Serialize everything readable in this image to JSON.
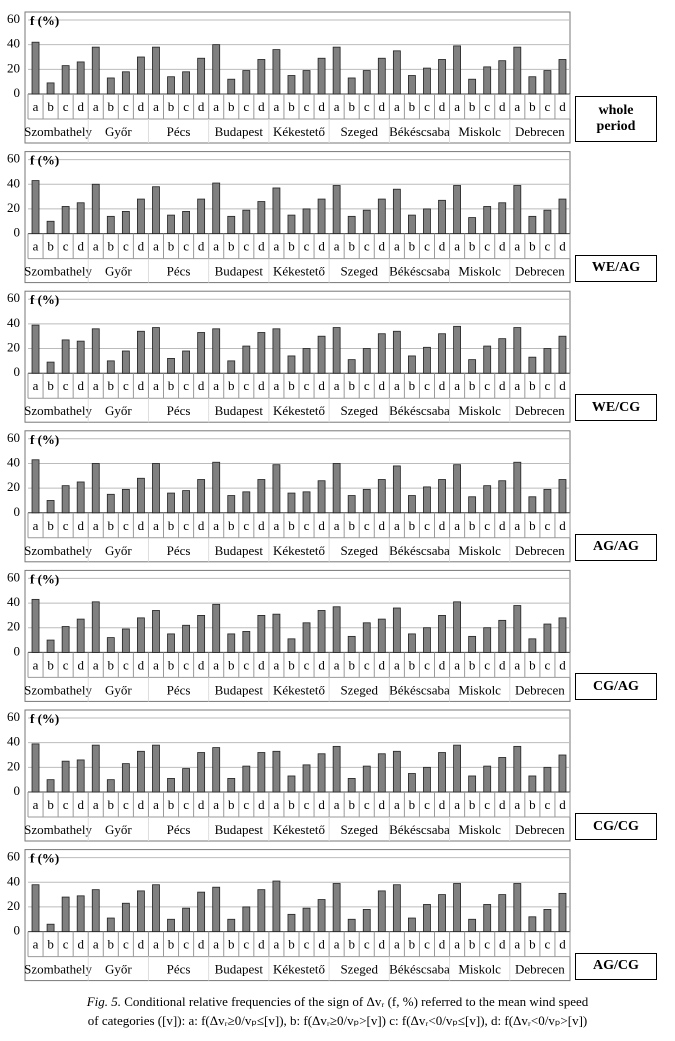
{
  "chart_data": [
    {
      "type": "bar",
      "panel_label": "whole period",
      "y_label": "f (%)",
      "color": "#808080",
      "groups": [
        "Szombathely",
        "Győr",
        "Pécs",
        "Budapest",
        "Kékestető",
        "Szeged",
        "Békéscsaba",
        "Miskolc",
        "Debrecen"
      ],
      "categories": [
        "a",
        "b",
        "c",
        "d",
        "a",
        "b",
        "c",
        "d",
        "a",
        "b",
        "c",
        "d",
        "a",
        "b",
        "c",
        "d",
        "a",
        "b",
        "c",
        "d",
        "a",
        "b",
        "c",
        "d",
        "a",
        "b",
        "c",
        "d",
        "a",
        "b",
        "c",
        "d",
        "a",
        "b",
        "c",
        "d"
      ],
      "values": [
        42,
        9,
        23,
        26,
        38,
        13,
        18,
        30,
        38,
        14,
        18,
        29,
        40,
        12,
        19,
        28,
        36,
        15,
        19,
        29,
        38,
        13,
        19,
        29,
        35,
        15,
        21,
        28,
        39,
        12,
        22,
        27,
        38,
        14,
        19,
        28
      ],
      "ylim": [
        0,
        60
      ],
      "yticks": [
        0,
        20,
        40,
        60
      ],
      "grid": true
    },
    {
      "type": "bar",
      "panel_label": "WE/AG",
      "y_label": "f (%)",
      "color": "#808080",
      "groups": [
        "Szombathely",
        "Győr",
        "Pécs",
        "Budapest",
        "Kékestető",
        "Szeged",
        "Békéscsaba",
        "Miskolc",
        "Debrecen"
      ],
      "categories": [
        "a",
        "b",
        "c",
        "d",
        "a",
        "b",
        "c",
        "d",
        "a",
        "b",
        "c",
        "d",
        "a",
        "b",
        "c",
        "d",
        "a",
        "b",
        "c",
        "d",
        "a",
        "b",
        "c",
        "d",
        "a",
        "b",
        "c",
        "d",
        "a",
        "b",
        "c",
        "d",
        "a",
        "b",
        "c",
        "d"
      ],
      "values": [
        43,
        10,
        22,
        25,
        40,
        14,
        18,
        28,
        38,
        15,
        18,
        28,
        41,
        14,
        19,
        26,
        37,
        15,
        20,
        28,
        39,
        14,
        19,
        28,
        36,
        15,
        20,
        27,
        39,
        13,
        22,
        25,
        39,
        14,
        19,
        28
      ],
      "ylim": [
        0,
        60
      ],
      "yticks": [
        0,
        20,
        40,
        60
      ],
      "grid": true
    },
    {
      "type": "bar",
      "panel_label": "WE/CG",
      "y_label": "f (%)",
      "color": "#808080",
      "groups": [
        "Szombathely",
        "Győr",
        "Pécs",
        "Budapest",
        "Kékestető",
        "Szeged",
        "Békéscsaba",
        "Miskolc",
        "Debrecen"
      ],
      "categories": [
        "a",
        "b",
        "c",
        "d",
        "a",
        "b",
        "c",
        "d",
        "a",
        "b",
        "c",
        "d",
        "a",
        "b",
        "c",
        "d",
        "a",
        "b",
        "c",
        "d",
        "a",
        "b",
        "c",
        "d",
        "a",
        "b",
        "c",
        "d",
        "a",
        "b",
        "c",
        "d",
        "a",
        "b",
        "c",
        "d"
      ],
      "values": [
        39,
        9,
        27,
        26,
        36,
        10,
        18,
        34,
        37,
        12,
        18,
        33,
        36,
        10,
        22,
        33,
        36,
        14,
        20,
        30,
        37,
        11,
        20,
        32,
        34,
        14,
        21,
        32,
        38,
        11,
        22,
        28,
        37,
        13,
        20,
        30
      ],
      "ylim": [
        0,
        60
      ],
      "yticks": [
        0,
        20,
        40,
        60
      ],
      "grid": true
    },
    {
      "type": "bar",
      "panel_label": "AG/AG",
      "y_label": "f (%)",
      "color": "#808080",
      "groups": [
        "Szombathely",
        "Győr",
        "Pécs",
        "Budapest",
        "Kékestető",
        "Szeged",
        "Békéscsaba",
        "Miskolc",
        "Debrecen"
      ],
      "categories": [
        "a",
        "b",
        "c",
        "d",
        "a",
        "b",
        "c",
        "d",
        "a",
        "b",
        "c",
        "d",
        "a",
        "b",
        "c",
        "d",
        "a",
        "b",
        "c",
        "d",
        "a",
        "b",
        "c",
        "d",
        "a",
        "b",
        "c",
        "d",
        "a",
        "b",
        "c",
        "d",
        "a",
        "b",
        "c",
        "d"
      ],
      "values": [
        43,
        10,
        22,
        25,
        40,
        15,
        19,
        28,
        40,
        16,
        18,
        27,
        41,
        14,
        17,
        27,
        39,
        16,
        17,
        26,
        40,
        14,
        19,
        27,
        38,
        14,
        21,
        27,
        39,
        13,
        22,
        26,
        41,
        13,
        19,
        27
      ],
      "ylim": [
        0,
        60
      ],
      "yticks": [
        0,
        20,
        40,
        60
      ],
      "grid": true
    },
    {
      "type": "bar",
      "panel_label": "CG/AG",
      "y_label": "f (%)",
      "color": "#808080",
      "groups": [
        "Szombathely",
        "Győr",
        "Pécs",
        "Budapest",
        "Kékestető",
        "Szeged",
        "Békéscsaba",
        "Miskolc",
        "Debrecen"
      ],
      "categories": [
        "a",
        "b",
        "c",
        "d",
        "a",
        "b",
        "c",
        "d",
        "a",
        "b",
        "c",
        "d",
        "a",
        "b",
        "c",
        "d",
        "a",
        "b",
        "c",
        "d",
        "a",
        "b",
        "c",
        "d",
        "a",
        "b",
        "c",
        "d",
        "a",
        "b",
        "c",
        "d",
        "a",
        "b",
        "c",
        "d"
      ],
      "values": [
        43,
        10,
        21,
        27,
        41,
        12,
        19,
        28,
        34,
        15,
        22,
        30,
        39,
        15,
        17,
        30,
        31,
        11,
        24,
        34,
        37,
        13,
        24,
        27,
        36,
        15,
        20,
        30,
        41,
        13,
        20,
        26,
        38,
        11,
        23,
        28
      ],
      "ylim": [
        0,
        60
      ],
      "yticks": [
        0,
        20,
        40,
        60
      ],
      "grid": true
    },
    {
      "type": "bar",
      "panel_label": "CG/CG",
      "y_label": "f (%)",
      "color": "#808080",
      "groups": [
        "Szombathely",
        "Győr",
        "Pécs",
        "Budapest",
        "Kékestető",
        "Szeged",
        "Békéscsaba",
        "Miskolc",
        "Debrecen"
      ],
      "categories": [
        "a",
        "b",
        "c",
        "d",
        "a",
        "b",
        "c",
        "d",
        "a",
        "b",
        "c",
        "d",
        "a",
        "b",
        "c",
        "d",
        "a",
        "b",
        "c",
        "d",
        "a",
        "b",
        "c",
        "d",
        "a",
        "b",
        "c",
        "d",
        "a",
        "b",
        "c",
        "d",
        "a",
        "b",
        "c",
        "d"
      ],
      "values": [
        39,
        10,
        25,
        26,
        38,
        10,
        23,
        33,
        38,
        11,
        19,
        32,
        36,
        11,
        21,
        32,
        33,
        13,
        22,
        31,
        37,
        11,
        21,
        31,
        33,
        15,
        20,
        32,
        38,
        13,
        21,
        28,
        37,
        13,
        20,
        30
      ],
      "ylim": [
        0,
        60
      ],
      "yticks": [
        0,
        20,
        40,
        60
      ],
      "grid": true
    },
    {
      "type": "bar",
      "panel_label": "AG/CG",
      "y_label": "f (%)",
      "color": "#808080",
      "groups": [
        "Szombathely",
        "Győr",
        "Pécs",
        "Budapest",
        "Kékestető",
        "Szeged",
        "Békéscsaba",
        "Miskolc",
        "Debrecen"
      ],
      "categories": [
        "a",
        "b",
        "c",
        "d",
        "a",
        "b",
        "c",
        "d",
        "a",
        "b",
        "c",
        "d",
        "a",
        "b",
        "c",
        "d",
        "a",
        "b",
        "c",
        "d",
        "a",
        "b",
        "c",
        "d",
        "a",
        "b",
        "c",
        "d",
        "a",
        "b",
        "c",
        "d",
        "a",
        "b",
        "c",
        "d"
      ],
      "values": [
        38,
        6,
        28,
        29,
        34,
        11,
        23,
        33,
        38,
        10,
        19,
        32,
        36,
        10,
        20,
        34,
        41,
        14,
        19,
        26,
        39,
        10,
        18,
        33,
        38,
        11,
        22,
        30,
        39,
        10,
        22,
        30,
        39,
        12,
        18,
        31
      ],
      "ylim": [
        0,
        60
      ],
      "yticks": [
        0,
        20,
        40,
        60
      ],
      "grid": true
    }
  ],
  "caption": {
    "label": "Fig. 5.",
    "lines": [
      "Conditional relative frequencies of the sign of Δvᵣ (f, %) referred to the mean wind speed",
      "of categories ([v]): a: f(Δvᵣ≥0/vₚ≤[v]), b: f(Δvᵣ≥0/vₚ>[v]) c: f(Δvᵣ<0/vₚ≤[v]), d: f(Δvᵣ<0/vₚ>[v])"
    ]
  }
}
